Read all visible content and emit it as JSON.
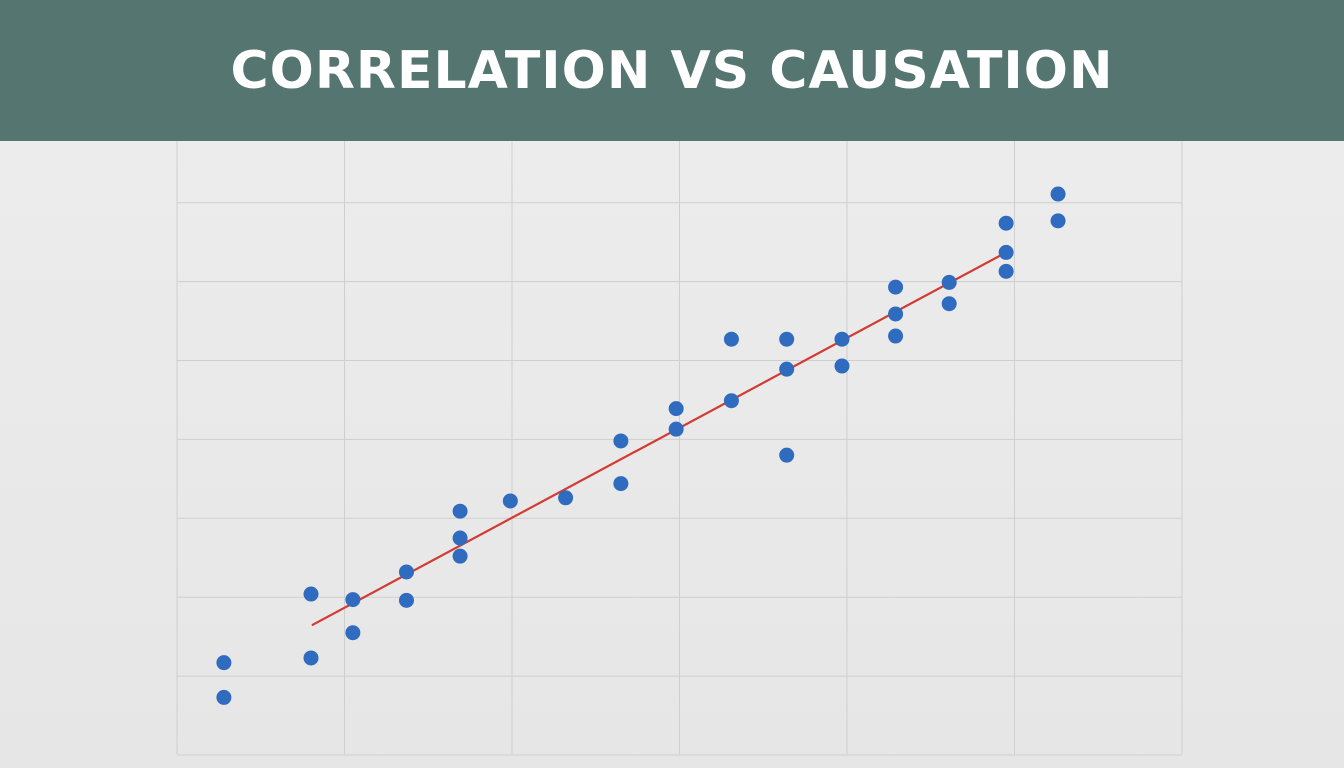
{
  "header": {
    "title": "CORRELATION VS CAUSATION"
  },
  "colors": {
    "header_bg": "#557570",
    "title_text": "#ffffff",
    "plot_bg": "#e8e8e8",
    "grid": "#cfcfcf",
    "points": "#2f6cbf",
    "trend_line": "#d33b32"
  },
  "chart_data": {
    "type": "scatter",
    "title": "CORRELATION VS CAUSATION",
    "xlabel": "",
    "ylabel": "",
    "xlim": [
      0,
      6
    ],
    "ylim": [
      0,
      7.8
    ],
    "grid": true,
    "legend": "none",
    "points": [
      {
        "x": 0.28,
        "y": 0.73
      },
      {
        "x": 0.28,
        "y": 1.17
      },
      {
        "x": 0.8,
        "y": 1.23
      },
      {
        "x": 0.8,
        "y": 2.04
      },
      {
        "x": 1.05,
        "y": 1.55
      },
      {
        "x": 1.05,
        "y": 1.97
      },
      {
        "x": 1.37,
        "y": 1.96
      },
      {
        "x": 1.37,
        "y": 2.32
      },
      {
        "x": 1.69,
        "y": 2.52
      },
      {
        "x": 1.69,
        "y": 2.75
      },
      {
        "x": 1.69,
        "y": 3.09
      },
      {
        "x": 1.99,
        "y": 3.22
      },
      {
        "x": 2.32,
        "y": 3.26
      },
      {
        "x": 2.65,
        "y": 3.44
      },
      {
        "x": 2.65,
        "y": 3.98
      },
      {
        "x": 2.98,
        "y": 4.13
      },
      {
        "x": 2.98,
        "y": 4.39
      },
      {
        "x": 3.31,
        "y": 4.49
      },
      {
        "x": 3.31,
        "y": 5.27
      },
      {
        "x": 3.64,
        "y": 3.8
      },
      {
        "x": 3.64,
        "y": 4.89
      },
      {
        "x": 3.64,
        "y": 5.27
      },
      {
        "x": 3.97,
        "y": 4.93
      },
      {
        "x": 3.97,
        "y": 5.27
      },
      {
        "x": 4.29,
        "y": 5.31
      },
      {
        "x": 4.29,
        "y": 5.59
      },
      {
        "x": 4.29,
        "y": 5.93
      },
      {
        "x": 4.61,
        "y": 5.72
      },
      {
        "x": 4.61,
        "y": 5.99
      },
      {
        "x": 4.95,
        "y": 6.13
      },
      {
        "x": 4.95,
        "y": 6.37
      },
      {
        "x": 4.95,
        "y": 6.74
      },
      {
        "x": 5.26,
        "y": 6.77
      },
      {
        "x": 5.26,
        "y": 7.11
      }
    ],
    "trend_line": {
      "x": [
        0.81,
        4.95
      ],
      "y": [
        1.65,
        6.37
      ]
    }
  }
}
